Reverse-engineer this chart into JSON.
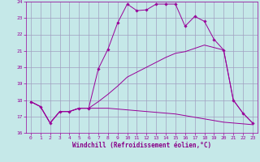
{
  "background_color": "#c5e8e8",
  "grid_color": "#a0a0c0",
  "line_color": "#990099",
  "xlabel": "Windchill (Refroidissement éolien,°C)",
  "xlabel_color": "#880088",
  "xlim": [
    -0.5,
    23.5
  ],
  "ylim": [
    16,
    24
  ],
  "yticks": [
    16,
    17,
    18,
    19,
    20,
    21,
    22,
    23,
    24
  ],
  "xticks": [
    0,
    1,
    2,
    3,
    4,
    5,
    6,
    7,
    8,
    9,
    10,
    11,
    12,
    13,
    14,
    15,
    16,
    17,
    18,
    19,
    20,
    21,
    22,
    23
  ],
  "curve1_x": [
    0,
    1,
    2,
    3,
    4,
    5,
    6,
    7,
    8,
    9,
    10,
    11,
    12,
    13,
    14,
    15,
    16,
    17,
    18,
    19,
    20,
    21,
    22,
    23
  ],
  "curve1_y": [
    17.9,
    17.6,
    16.6,
    17.3,
    17.3,
    17.5,
    17.5,
    19.9,
    21.1,
    22.7,
    23.85,
    23.45,
    23.5,
    23.85,
    23.85,
    23.85,
    22.5,
    23.1,
    22.8,
    21.7,
    21.05,
    18.0,
    17.2,
    16.6
  ],
  "curve2_x": [
    0,
    1,
    2,
    3,
    4,
    5,
    6,
    7,
    8,
    9,
    10,
    11,
    12,
    13,
    14,
    15,
    16,
    17,
    18,
    19,
    20,
    21,
    22,
    23
  ],
  "curve2_y": [
    17.9,
    17.6,
    16.6,
    17.3,
    17.3,
    17.5,
    17.5,
    17.5,
    17.5,
    17.45,
    17.4,
    17.35,
    17.3,
    17.25,
    17.2,
    17.15,
    17.05,
    16.95,
    16.85,
    16.75,
    16.65,
    16.6,
    16.55,
    16.5
  ],
  "curve3_x": [
    0,
    1,
    2,
    3,
    4,
    5,
    6,
    7,
    8,
    9,
    10,
    11,
    12,
    13,
    14,
    15,
    16,
    17,
    18,
    19,
    20,
    21,
    22,
    23
  ],
  "curve3_y": [
    17.9,
    17.6,
    16.6,
    17.3,
    17.3,
    17.5,
    17.5,
    17.9,
    18.35,
    18.85,
    19.4,
    19.7,
    20.0,
    20.3,
    20.6,
    20.85,
    20.95,
    21.15,
    21.35,
    21.2,
    21.05,
    18.0,
    17.2,
    16.6
  ]
}
